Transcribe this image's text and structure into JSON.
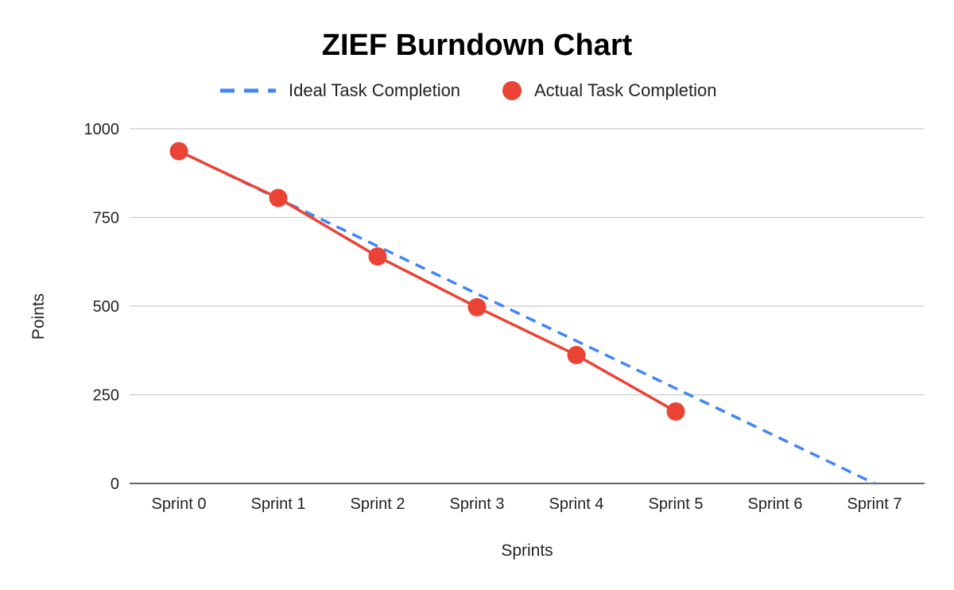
{
  "chart_data": {
    "type": "line",
    "title": "ZIEF Burndown Chart",
    "xlabel": "Sprints",
    "ylabel": "Points",
    "categories": [
      "Sprint 0",
      "Sprint 1",
      "Sprint 2",
      "Sprint 3",
      "Sprint 4",
      "Sprint 5",
      "Sprint 6",
      "Sprint 7"
    ],
    "ylim": [
      0,
      1000
    ],
    "yticks": [
      "0",
      "250",
      "500",
      "750",
      "1000"
    ],
    "grid": true,
    "legend_position": "top",
    "series": [
      {
        "name": "Ideal Task Completion",
        "style": "dashed",
        "color": "#4285F4",
        "values": [
          937,
          803,
          669,
          535,
          402,
          268,
          134,
          0
        ]
      },
      {
        "name": "Actual Task Completion",
        "style": "solid-with-markers",
        "color": "#EA4335",
        "values": [
          937,
          805,
          640,
          497,
          362,
          203,
          null,
          null
        ]
      }
    ]
  }
}
